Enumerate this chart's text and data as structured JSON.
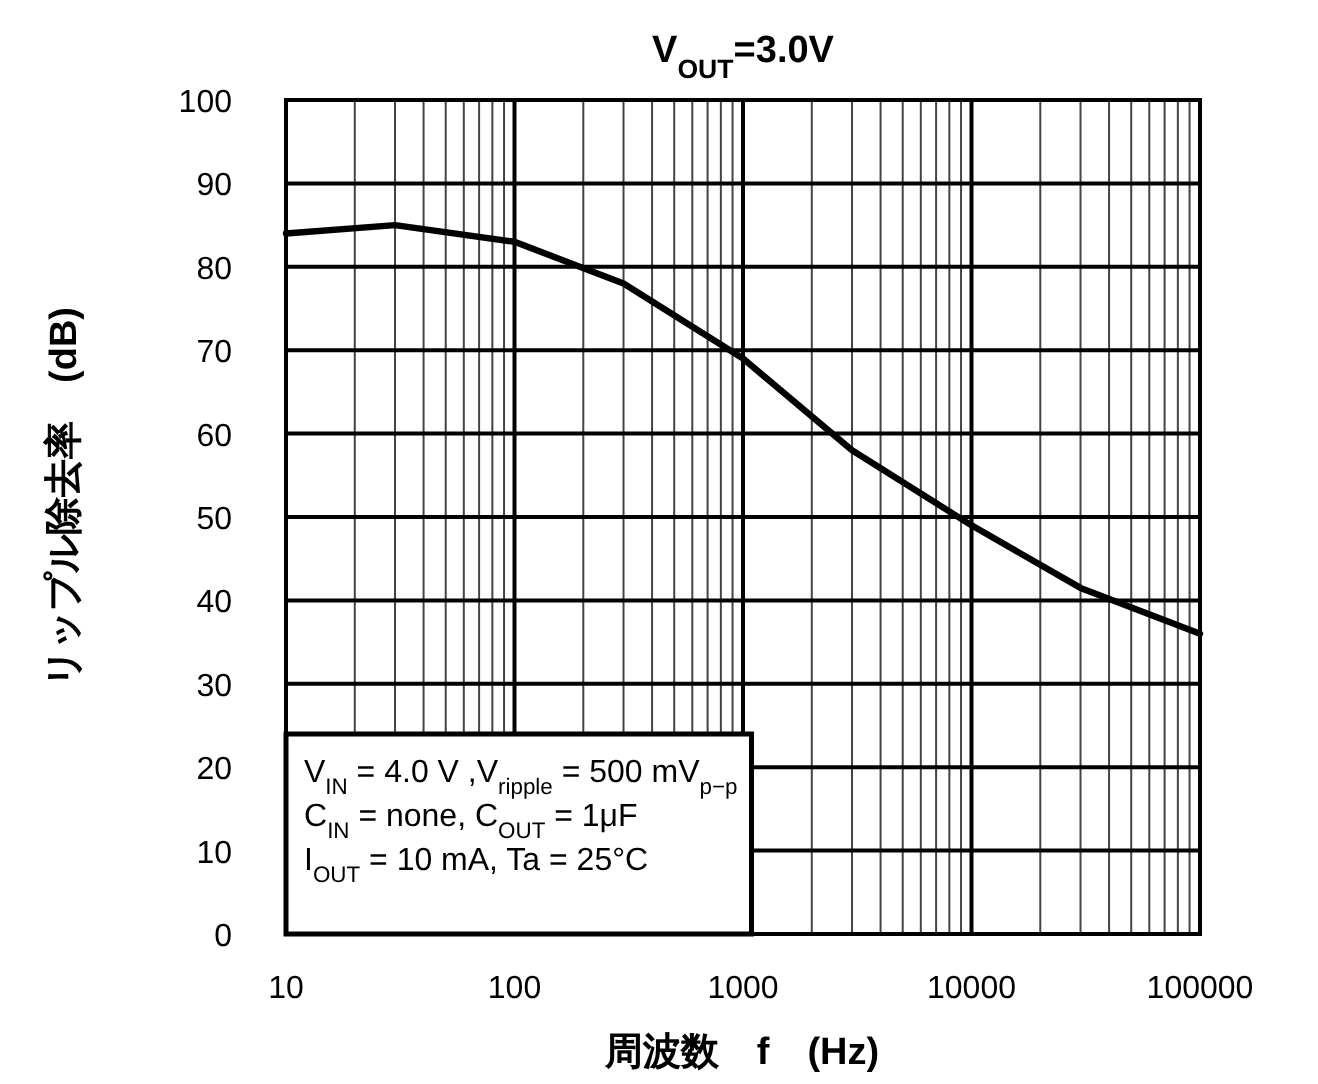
{
  "chart_data": {
    "type": "line",
    "title": "V$_{OUT}$=3.0V",
    "xlabel": "周波数　f　(Hz)",
    "ylabel": "リップル除去率　(dB)",
    "x": [
      10,
      30,
      100,
      300,
      1000,
      3000,
      10000,
      30000,
      100000
    ],
    "series": [
      {
        "color": "#000000",
        "values": [
          84,
          85,
          83,
          78,
          69,
          58,
          49,
          41.5,
          36
        ]
      }
    ],
    "log": "x",
    "xlim": [
      10,
      100000
    ],
    "xticks": [
      10,
      100,
      1000,
      10000,
      100000
    ],
    "ylim": [
      0,
      100
    ],
    "yticks": [
      0,
      10,
      20,
      30,
      40,
      50,
      60,
      70,
      80,
      90,
      100
    ],
    "grid": true,
    "marker": "none",
    "line_style": "solid",
    "annotations": [
      "V$_{IN}$ = 4.0 V ,V$_{ripple}$ = 500 mV$_{p−p}$",
      "C$_{IN}$ = none, C$_{OUT}$ = 1μF",
      "I$_{OUT}$ = 10 mA, Ta = 25°C"
    ]
  }
}
